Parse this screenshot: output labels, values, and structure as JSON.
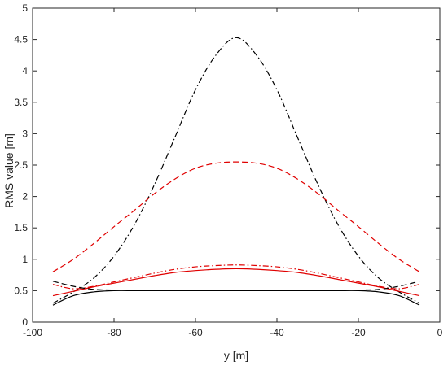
{
  "chart_data": {
    "type": "line",
    "title": "",
    "xlabel": "y [m]",
    "ylabel": "RMS value [m]",
    "xlim": [
      -100,
      0
    ],
    "ylim": [
      0,
      5
    ],
    "x_ticks": [
      -100,
      -80,
      -60,
      -40,
      -20,
      0
    ],
    "y_ticks": [
      0,
      0.5,
      1,
      1.5,
      2,
      2.5,
      3,
      3.5,
      4,
      4.5,
      5
    ],
    "x_tick_labels": [
      "-100",
      "-80",
      "-60",
      "-40",
      "-20",
      "0"
    ],
    "y_tick_labels": [
      "0",
      "0.5",
      "1",
      "1.5",
      "2",
      "2.5",
      "3",
      "3.5",
      "4",
      "4.5",
      "5"
    ],
    "grid": false,
    "x": [
      -95,
      -90,
      -85,
      -80,
      -75,
      -70,
      -65,
      -60,
      -55,
      -50,
      -45,
      -40,
      -35,
      -30,
      -25,
      -20,
      -15,
      -10,
      -5
    ],
    "series": [
      {
        "color": "#000000",
        "dash": "dashdot",
        "values": [
          0.3,
          0.48,
          0.7,
          1.05,
          1.55,
          2.2,
          2.95,
          3.7,
          4.25,
          4.53,
          4.25,
          3.7,
          2.95,
          2.2,
          1.55,
          1.05,
          0.7,
          0.48,
          0.3
        ]
      },
      {
        "color": "#e00000",
        "dash": "dashed",
        "values": [
          0.8,
          1.0,
          1.25,
          1.52,
          1.78,
          2.05,
          2.28,
          2.45,
          2.53,
          2.55,
          2.53,
          2.45,
          2.28,
          2.05,
          1.78,
          1.52,
          1.25,
          1.0,
          0.8
        ]
      },
      {
        "color": "#e00000",
        "dash": "dashdot",
        "values": [
          0.6,
          0.53,
          0.57,
          0.64,
          0.71,
          0.78,
          0.84,
          0.88,
          0.9,
          0.91,
          0.9,
          0.88,
          0.84,
          0.78,
          0.71,
          0.64,
          0.57,
          0.53,
          0.6
        ]
      },
      {
        "color": "#e00000",
        "dash": "solid",
        "values": [
          0.42,
          0.49,
          0.56,
          0.62,
          0.68,
          0.74,
          0.79,
          0.82,
          0.84,
          0.85,
          0.84,
          0.82,
          0.79,
          0.74,
          0.68,
          0.62,
          0.56,
          0.49,
          0.42
        ]
      },
      {
        "color": "#000000",
        "dash": "dashed",
        "values": [
          0.65,
          0.57,
          0.52,
          0.51,
          0.51,
          0.51,
          0.51,
          0.51,
          0.51,
          0.51,
          0.51,
          0.51,
          0.51,
          0.51,
          0.51,
          0.51,
          0.52,
          0.57,
          0.65
        ]
      },
      {
        "color": "#000000",
        "dash": "solid",
        "values": [
          0.27,
          0.42,
          0.48,
          0.5,
          0.5,
          0.5,
          0.5,
          0.5,
          0.5,
          0.5,
          0.5,
          0.5,
          0.5,
          0.5,
          0.5,
          0.5,
          0.48,
          0.42,
          0.27
        ]
      }
    ]
  }
}
